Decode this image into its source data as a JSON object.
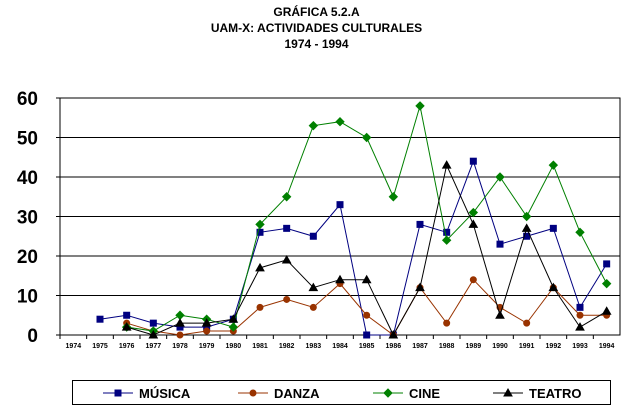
{
  "titles": {
    "line1": "GRÁFICA 5.2.A",
    "line2": "UAM-X: ACTIVIDADES CULTURALES",
    "line3": "1974 - 1994"
  },
  "colors": {
    "musica": "#000080",
    "danza": "#993300",
    "cine": "#008000",
    "teatro": "#000000"
  },
  "chart_data": {
    "type": "line",
    "title": "GRÁFICA 5.2.A",
    "subtitle": "UAM-X: ACTIVIDADES CULTURALES 1974 - 1994",
    "x": [
      "1974",
      "1975",
      "1976",
      "1977",
      "1978",
      "1979",
      "1980",
      "1981",
      "1982",
      "1983",
      "1984",
      "1985",
      "1986",
      "1987",
      "1988",
      "1989",
      "1990",
      "1991",
      "1992",
      "1993",
      "1994"
    ],
    "ylim": [
      0,
      60
    ],
    "yticks": [
      0,
      10,
      20,
      30,
      40,
      50,
      60
    ],
    "grid": true,
    "legend_position": "bottom",
    "series": [
      {
        "name": "MÚSICA",
        "key": "musica",
        "marker": "square",
        "values": [
          null,
          4,
          5,
          3,
          2,
          2,
          4,
          26,
          27,
          25,
          33,
          0,
          0,
          28,
          26,
          44,
          23,
          25,
          27,
          7,
          18
        ]
      },
      {
        "name": "DANZA",
        "key": "danza",
        "marker": "circle",
        "values": [
          null,
          null,
          3,
          1,
          0,
          1,
          1,
          7,
          9,
          7,
          13,
          5,
          0,
          12,
          3,
          14,
          7,
          3,
          12,
          5,
          5
        ]
      },
      {
        "name": "CINE",
        "key": "cine",
        "marker": "diamond",
        "values": [
          null,
          null,
          2,
          1,
          5,
          4,
          2,
          28,
          35,
          53,
          54,
          50,
          35,
          58,
          24,
          31,
          40,
          30,
          43,
          26,
          13
        ]
      },
      {
        "name": "TEATRO",
        "key": "teatro",
        "marker": "triangle",
        "values": [
          null,
          null,
          2,
          0,
          3,
          3,
          4,
          17,
          19,
          12,
          14,
          14,
          0,
          12,
          43,
          28,
          5,
          27,
          12,
          2,
          6
        ]
      }
    ]
  }
}
